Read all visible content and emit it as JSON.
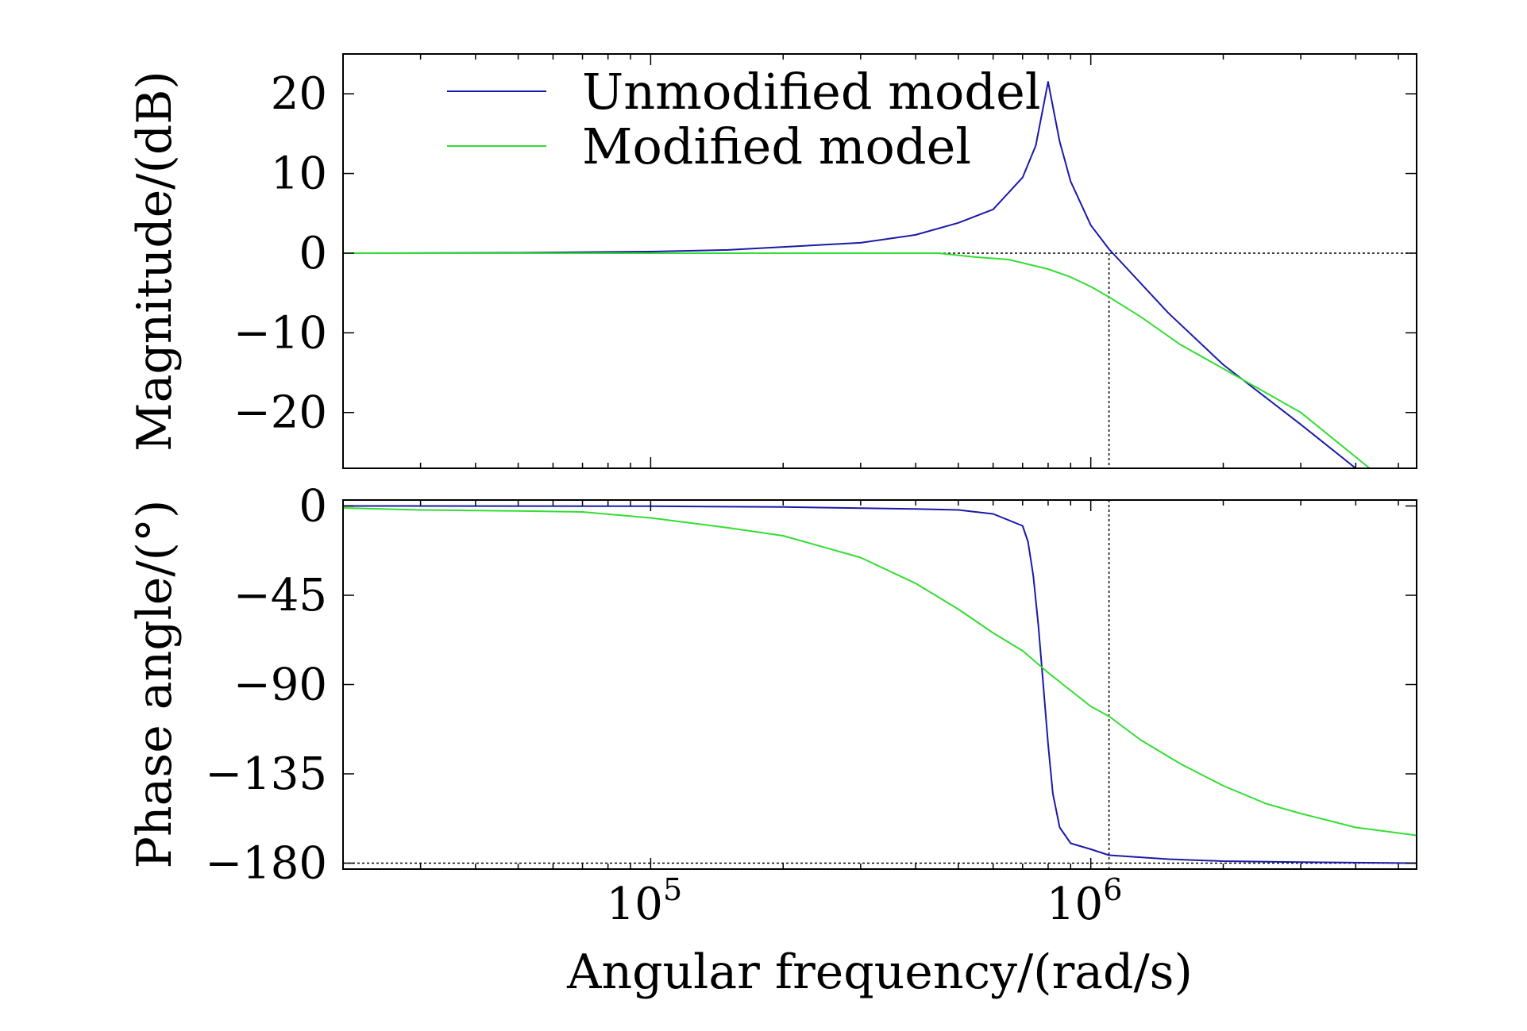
{
  "chart_data": [
    {
      "type": "line",
      "panel": "magnitude",
      "ylabel": "Magnitude/(dB)",
      "xscale": "log",
      "xlim": [
        20000,
        5500000
      ],
      "ylim": [
        -27,
        25
      ],
      "yticks": [
        20,
        10,
        0,
        -10,
        -20
      ],
      "ytick_labels": [
        "20",
        "10",
        "0",
        "−10",
        "−20"
      ],
      "reference_line": {
        "y": 0,
        "style": "dotted"
      },
      "marker_line": {
        "x": 1100000,
        "style": "dotted"
      },
      "legend": {
        "placement": "top-left",
        "entries": [
          "Unmodified model",
          "Modified model"
        ]
      },
      "series": [
        {
          "name": "Unmodified model",
          "color": "#1a1aa8",
          "x": [
            20000,
            50000,
            100000,
            150000,
            300000,
            400000,
            500000,
            600000,
            700000,
            750000,
            800000,
            850000,
            900000,
            1000000,
            1100000,
            1500000,
            2000000,
            3000000,
            4000000
          ],
          "y": [
            0,
            0.05,
            0.2,
            0.4,
            1.3,
            2.3,
            3.8,
            5.5,
            9.5,
            13.5,
            21.5,
            14,
            9,
            3.5,
            0.5,
            -7.5,
            -14,
            -21.5,
            -27
          ]
        },
        {
          "name": "Modified model",
          "color": "#33dd33",
          "x": [
            20000,
            100000,
            300000,
            450000,
            550000,
            650000,
            800000,
            900000,
            1000000,
            1100000,
            1300000,
            1600000,
            2000000,
            3000000,
            4300000
          ],
          "y": [
            0,
            0,
            0,
            0,
            -0.5,
            -0.8,
            -2,
            -3,
            -4.2,
            -5.5,
            -8,
            -11.5,
            -14.5,
            -20,
            -27
          ]
        }
      ]
    },
    {
      "type": "line",
      "panel": "phase",
      "ylabel": "Phase angle/(°)",
      "xlabel": "Angular frequency/(rad/s)",
      "xscale": "log",
      "xlim": [
        20000,
        5500000
      ],
      "ylim": [
        -183,
        3
      ],
      "yticks": [
        0,
        -45,
        -90,
        -135,
        -180
      ],
      "ytick_labels": [
        "0",
        "−45",
        "−90",
        "−135",
        "−180"
      ],
      "xticks": [
        100000,
        1000000
      ],
      "xtick_labels": [
        {
          "base": "10",
          "exp": "5"
        },
        {
          "base": "10",
          "exp": "6"
        }
      ],
      "reference_line": {
        "y": -180,
        "style": "dotted"
      },
      "marker_line": {
        "x": 1100000,
        "style": "dotted"
      },
      "series": [
        {
          "name": "Unmodified model",
          "color": "#1a1aa8",
          "x": [
            20000,
            100000,
            200000,
            400000,
            500000,
            600000,
            700000,
            720000,
            740000,
            760000,
            780000,
            800000,
            820000,
            850000,
            900000,
            1000000,
            1100000,
            1500000,
            2000000,
            3000000,
            5500000
          ],
          "y": [
            0,
            -0.1,
            -0.5,
            -1.5,
            -2,
            -4,
            -10,
            -18,
            -35,
            -60,
            -90,
            -120,
            -145,
            -162,
            -170,
            -173,
            -176,
            -178,
            -179,
            -179.5,
            -180
          ]
        },
        {
          "name": "Modified model",
          "color": "#33dd33",
          "x": [
            20000,
            30000,
            50000,
            70000,
            100000,
            150000,
            200000,
            300000,
            400000,
            500000,
            600000,
            700000,
            800000,
            900000,
            1000000,
            1100000,
            1300000,
            1600000,
            2000000,
            2500000,
            3000000,
            4000000,
            5500000
          ],
          "y": [
            -1,
            -2,
            -2.5,
            -3,
            -6,
            -11,
            -15,
            -26,
            -39,
            -52,
            -64,
            -73,
            -84,
            -93,
            -101,
            -106,
            -118,
            -130,
            -141,
            -150,
            -155,
            -162,
            -166
          ]
        }
      ]
    }
  ]
}
